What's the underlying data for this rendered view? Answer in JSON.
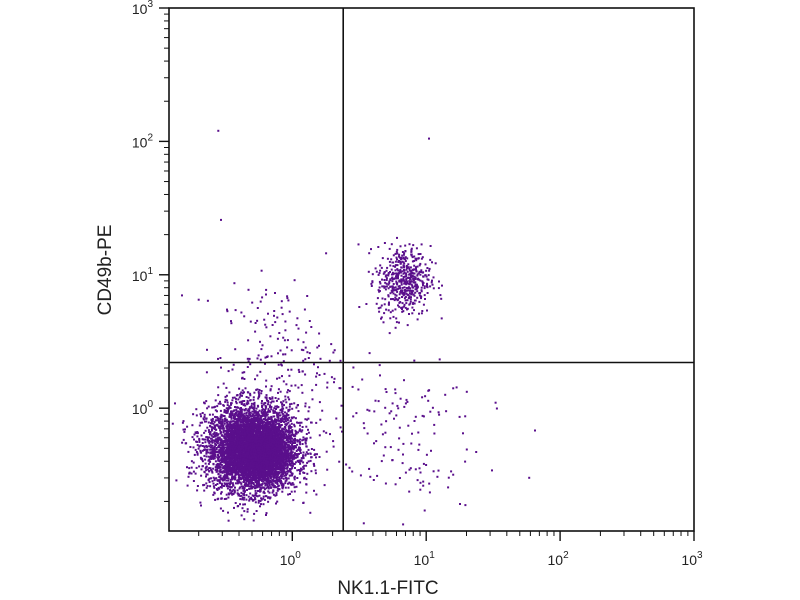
{
  "chart_data": {
    "type": "scatter",
    "title": "",
    "xlabel": "NK1.1-FITC",
    "ylabel": "CD49b-PE",
    "xscale": "log",
    "yscale": "log",
    "xlim": [
      0.12,
      1000
    ],
    "ylim": [
      0.12,
      1000
    ],
    "x_ticks": [
      {
        "value": 1,
        "base": "10",
        "exp": "0"
      },
      {
        "value": 10,
        "base": "10",
        "exp": "1"
      },
      {
        "value": 100,
        "base": "10",
        "exp": "2"
      },
      {
        "value": 1000,
        "base": "10",
        "exp": "3"
      }
    ],
    "y_ticks": [
      {
        "value": 1,
        "base": "10",
        "exp": "0"
      },
      {
        "value": 10,
        "base": "10",
        "exp": "1"
      },
      {
        "value": 100,
        "base": "10",
        "exp": "2"
      },
      {
        "value": 1000,
        "base": "10",
        "exp": "3"
      }
    ],
    "quadrant_gates": {
      "x": 2.4,
      "y": 2.2
    },
    "point_color": "#5a0f8c",
    "series": [
      {
        "clusters": [
          {
            "center": [
              0.5,
              0.5
            ],
            "spread": [
              0.17,
              0.16
            ],
            "count": 5200
          },
          {
            "center": [
              0.6,
              0.45
            ],
            "spread": [
              0.1,
              0.1
            ],
            "count": 1500
          },
          {
            "center": [
              6.8,
              9.0
            ],
            "spread": [
              0.1,
              0.13
            ],
            "count": 520
          },
          {
            "center": [
              0.8,
              2.2
            ],
            "spread": [
              0.22,
              0.3
            ],
            "count": 200
          },
          {
            "center": [
              6.0,
              0.6
            ],
            "spread": [
              0.3,
              0.3
            ],
            "count": 140
          }
        ],
        "outliers": [
          [
            0.28,
            120
          ],
          [
            10.5,
            105
          ],
          [
            65,
            0.68
          ],
          [
            33,
            1.1
          ],
          [
            0.15,
            7
          ],
          [
            0.2,
            6.5
          ]
        ]
      }
    ]
  }
}
